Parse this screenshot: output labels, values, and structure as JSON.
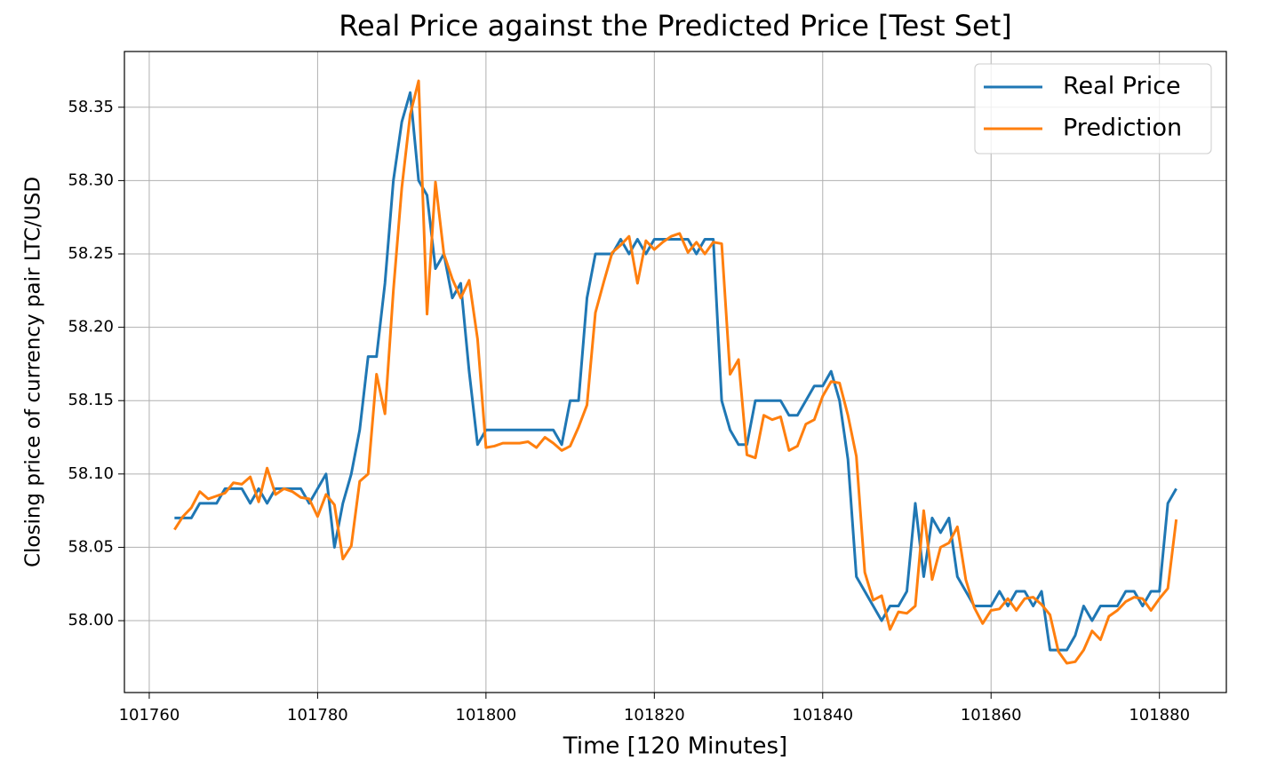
{
  "chart_data": {
    "type": "line",
    "title": "Real Price against the Predicted Price [Test Set]",
    "x_label": "Time [120 Minutes]",
    "y_label": "Closing price of currency pair LTC/USD",
    "x": [
      101763,
      101764,
      101765,
      101766,
      101767,
      101768,
      101769,
      101770,
      101771,
      101772,
      101773,
      101774,
      101775,
      101776,
      101777,
      101778,
      101779,
      101780,
      101781,
      101782,
      101783,
      101784,
      101785,
      101786,
      101787,
      101788,
      101789,
      101790,
      101791,
      101792,
      101793,
      101794,
      101795,
      101796,
      101797,
      101798,
      101799,
      101800,
      101801,
      101802,
      101803,
      101804,
      101805,
      101806,
      101807,
      101808,
      101809,
      101810,
      101811,
      101812,
      101813,
      101814,
      101815,
      101816,
      101817,
      101818,
      101819,
      101820,
      101821,
      101822,
      101823,
      101824,
      101825,
      101826,
      101827,
      101828,
      101829,
      101830,
      101831,
      101832,
      101833,
      101834,
      101835,
      101836,
      101837,
      101838,
      101839,
      101840,
      101841,
      101842,
      101843,
      101844,
      101845,
      101846,
      101847,
      101848,
      101849,
      101850,
      101851,
      101852,
      101853,
      101854,
      101855,
      101856,
      101857,
      101858,
      101859,
      101860,
      101861,
      101862,
      101863,
      101864,
      101865,
      101866,
      101867,
      101868,
      101869,
      101870,
      101871,
      101872,
      101873,
      101874,
      101875,
      101876,
      101877,
      101878,
      101879,
      101880,
      101881,
      101882
    ],
    "series": [
      {
        "name": "Real Price",
        "color": "#1f77b4",
        "values": [
          58.07,
          58.07,
          58.07,
          58.08,
          58.08,
          58.08,
          58.09,
          58.09,
          58.09,
          58.08,
          58.09,
          58.08,
          58.09,
          58.09,
          58.09,
          58.09,
          58.08,
          58.09,
          58.1,
          58.05,
          58.08,
          58.1,
          58.13,
          58.18,
          58.18,
          58.23,
          58.3,
          58.34,
          58.36,
          58.3,
          58.29,
          58.24,
          58.25,
          58.22,
          58.23,
          58.17,
          58.12,
          58.13,
          58.13,
          58.13,
          58.13,
          58.13,
          58.13,
          58.13,
          58.13,
          58.13,
          58.12,
          58.15,
          58.15,
          58.22,
          58.25,
          58.25,
          58.25,
          58.26,
          58.25,
          58.26,
          58.25,
          58.26,
          58.26,
          58.26,
          58.26,
          58.26,
          58.25,
          58.26,
          58.26,
          58.15,
          58.13,
          58.12,
          58.12,
          58.15,
          58.15,
          58.15,
          58.15,
          58.14,
          58.14,
          58.15,
          58.16,
          58.16,
          58.17,
          58.15,
          58.11,
          58.03,
          58.02,
          58.01,
          58.0,
          58.01,
          58.01,
          58.02,
          58.08,
          58.03,
          58.07,
          58.06,
          58.07,
          58.03,
          58.02,
          58.01,
          58.01,
          58.01,
          58.02,
          58.01,
          58.02,
          58.02,
          58.01,
          58.02,
          57.98,
          57.98,
          57.98,
          57.99,
          58.01,
          58.0,
          58.01,
          58.01,
          58.01,
          58.02,
          58.02,
          58.01,
          58.02,
          58.02,
          58.08,
          58.09
        ]
      },
      {
        "name": "Prediction",
        "color": "#ff7f0e",
        "values": [
          58.062,
          58.071,
          58.077,
          58.088,
          58.083,
          58.085,
          58.087,
          58.094,
          58.093,
          58.098,
          58.081,
          58.104,
          58.086,
          58.09,
          58.088,
          58.084,
          58.083,
          58.071,
          58.086,
          58.079,
          58.042,
          58.051,
          58.095,
          58.1,
          58.168,
          58.141,
          58.225,
          58.295,
          58.345,
          58.368,
          58.209,
          58.299,
          58.25,
          58.233,
          58.22,
          58.232,
          58.192,
          58.118,
          58.119,
          58.121,
          58.121,
          58.121,
          58.122,
          58.118,
          58.125,
          58.121,
          58.116,
          58.119,
          58.132,
          58.147,
          58.21,
          58.231,
          58.251,
          58.256,
          58.262,
          58.23,
          58.259,
          58.253,
          58.258,
          58.262,
          58.264,
          58.251,
          58.258,
          58.25,
          58.258,
          58.257,
          58.168,
          58.178,
          58.113,
          58.111,
          58.14,
          58.137,
          58.139,
          58.116,
          58.119,
          58.134,
          58.137,
          58.153,
          58.163,
          58.162,
          58.14,
          58.112,
          58.033,
          58.014,
          58.017,
          57.994,
          58.006,
          58.005,
          58.01,
          58.075,
          58.028,
          58.05,
          58.053,
          58.064,
          58.028,
          58.009,
          57.998,
          58.007,
          58.008,
          58.015,
          58.007,
          58.015,
          58.016,
          58.011,
          58.004,
          57.979,
          57.971,
          57.972,
          57.98,
          57.993,
          57.987,
          58.003,
          58.007,
          58.013,
          58.016,
          58.015,
          58.007,
          58.015,
          58.022,
          58.069
        ]
      }
    ],
    "xlim": [
      101757.05,
      101887.95
    ],
    "xticks": [
      101760,
      101780,
      101800,
      101820,
      101840,
      101860,
      101880
    ],
    "ylim": [
      57.951,
      58.388
    ],
    "yticks": [
      {
        "value": 58,
        "label": "58.00"
      },
      58.05,
      {
        "value": 58.1,
        "label": "58.10"
      },
      58.15,
      {
        "value": 58.2,
        "label": "58.20"
      },
      58.25,
      {
        "value": 58.3,
        "label": "58.30"
      },
      58.35
    ],
    "grid": true,
    "legend": "upper right"
  }
}
